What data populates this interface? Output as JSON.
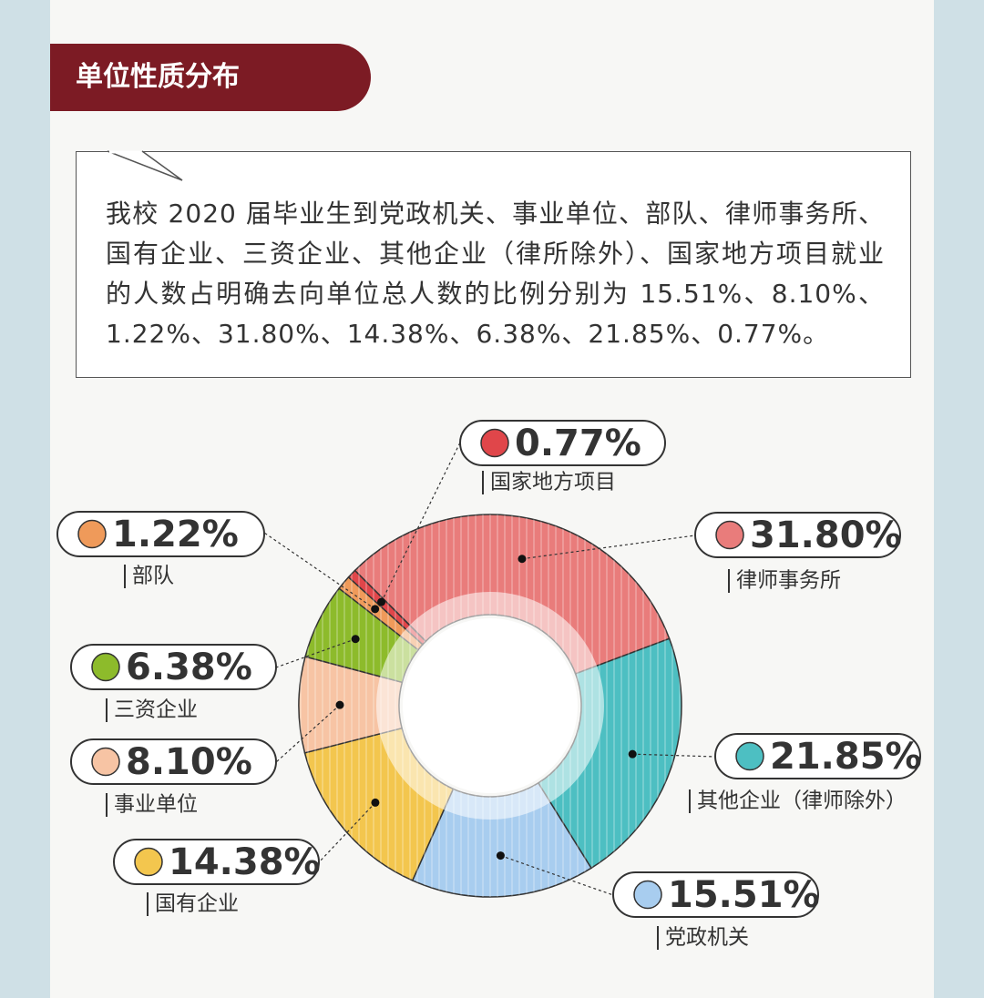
{
  "chart_data": {
    "type": "donut",
    "title": "单位性质分布",
    "description": "我校 2020 届毕业生到党政机关、事业单位、部队、律师事务所、国有企业、三资企业、其他企业（律所除外）、国家地方项目就业的人数占明确去向单位总人数的比例分别为 15.51%、8.10%、1.22%、31.80%、14.38%、6.38%、21.85%、0.77%。",
    "categories": [
      "律师事务所",
      "其他企业（律师除外）",
      "党政机关",
      "国有企业",
      "事业单位",
      "三资企业",
      "部队",
      "国家地方项目"
    ],
    "values": [
      31.8,
      21.85,
      15.51,
      14.38,
      8.1,
      6.38,
      1.22,
      0.77
    ],
    "value_labels": [
      "31.80%",
      "21.85%",
      "15.51%",
      "14.38%",
      "8.10%",
      "6.38%",
      "1.22%",
      "0.77%"
    ],
    "colors": [
      "#e97c7b",
      "#4dbfc2",
      "#a8cdef",
      "#f3c64e",
      "#f7c4a4",
      "#8dbb2b",
      "#ef9a5a",
      "#e0464a"
    ]
  }
}
